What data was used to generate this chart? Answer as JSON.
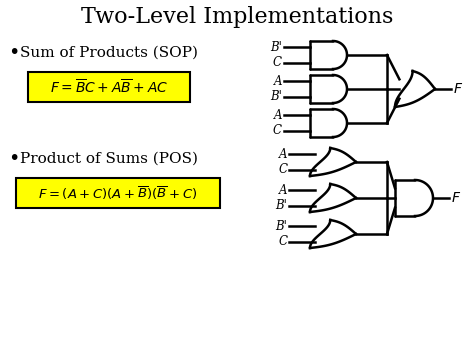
{
  "title": "Two-Level Implementations",
  "title_fontsize": 16,
  "background_color": "#ffffff",
  "formula_bg": "#ffff00",
  "formula_border": "#000000",
  "gate_color": "#000000",
  "gate_linewidth": 1.8,
  "text_color": "#000000",
  "sop_label": "Sum of Products (SOP)",
  "pos_label": "Product of Sums (POS)",
  "sop_and_inputs": [
    [
      "B'",
      "C"
    ],
    [
      "A",
      "B'"
    ],
    [
      "A",
      "C"
    ]
  ],
  "pos_or_inputs": [
    [
      "A",
      "C"
    ],
    [
      "A",
      "B'"
    ],
    [
      "B'",
      "C"
    ]
  ]
}
